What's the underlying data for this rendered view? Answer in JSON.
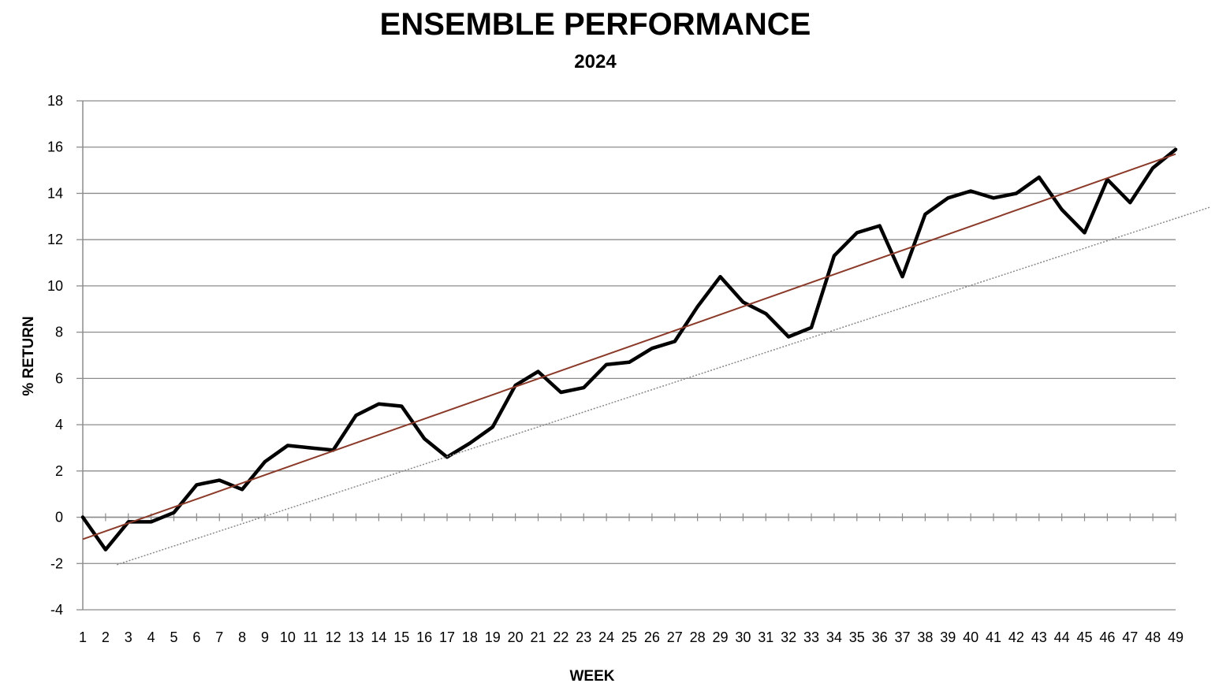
{
  "chart_data": {
    "type": "line",
    "title": "ENSEMBLE PERFORMANCE",
    "subtitle": "2024",
    "xlabel": "WEEK",
    "ylabel": "% RETURN",
    "ylim": [
      -4,
      18
    ],
    "y_ticks": [
      -4,
      -2,
      0,
      2,
      4,
      6,
      8,
      10,
      12,
      14,
      16,
      18
    ],
    "grid": true,
    "x": [
      1,
      2,
      3,
      4,
      5,
      6,
      7,
      8,
      9,
      10,
      11,
      12,
      13,
      14,
      15,
      16,
      17,
      18,
      19,
      20,
      21,
      22,
      23,
      24,
      25,
      26,
      27,
      28,
      29,
      30,
      31,
      32,
      33,
      34,
      35,
      36,
      37,
      38,
      39,
      40,
      41,
      42,
      43,
      44,
      45,
      46,
      47,
      48,
      49
    ],
    "series": [
      {
        "values": [
          0,
          -1.4,
          -0.2,
          -0.2,
          0.2,
          1.4,
          1.6,
          1.2,
          2.4,
          3.1,
          3.0,
          2.9,
          4.4,
          4.9,
          4.8,
          3.4,
          2.6,
          3.2,
          3.9,
          5.7,
          6.3,
          5.4,
          5.6,
          6.6,
          6.7,
          7.3,
          7.6,
          9.1,
          10.4,
          9.3,
          8.8,
          7.8,
          8.2,
          11.3,
          12.3,
          12.6,
          10.4,
          13.1,
          13.8,
          14.1,
          13.8,
          14.0,
          14.7,
          13.3,
          12.3,
          14.6,
          13.6,
          15.1,
          15.9
        ],
        "color": "#000000"
      },
      {
        "kind": "trend",
        "x": [
          1,
          49
        ],
        "values": [
          -0.95,
          15.7
        ],
        "color": "#8b3a2a"
      },
      {
        "kind": "trend-dotted",
        "x": [
          2.5,
          50.5
        ],
        "values": [
          -2.05,
          13.4
        ],
        "color": "#888888"
      }
    ]
  }
}
